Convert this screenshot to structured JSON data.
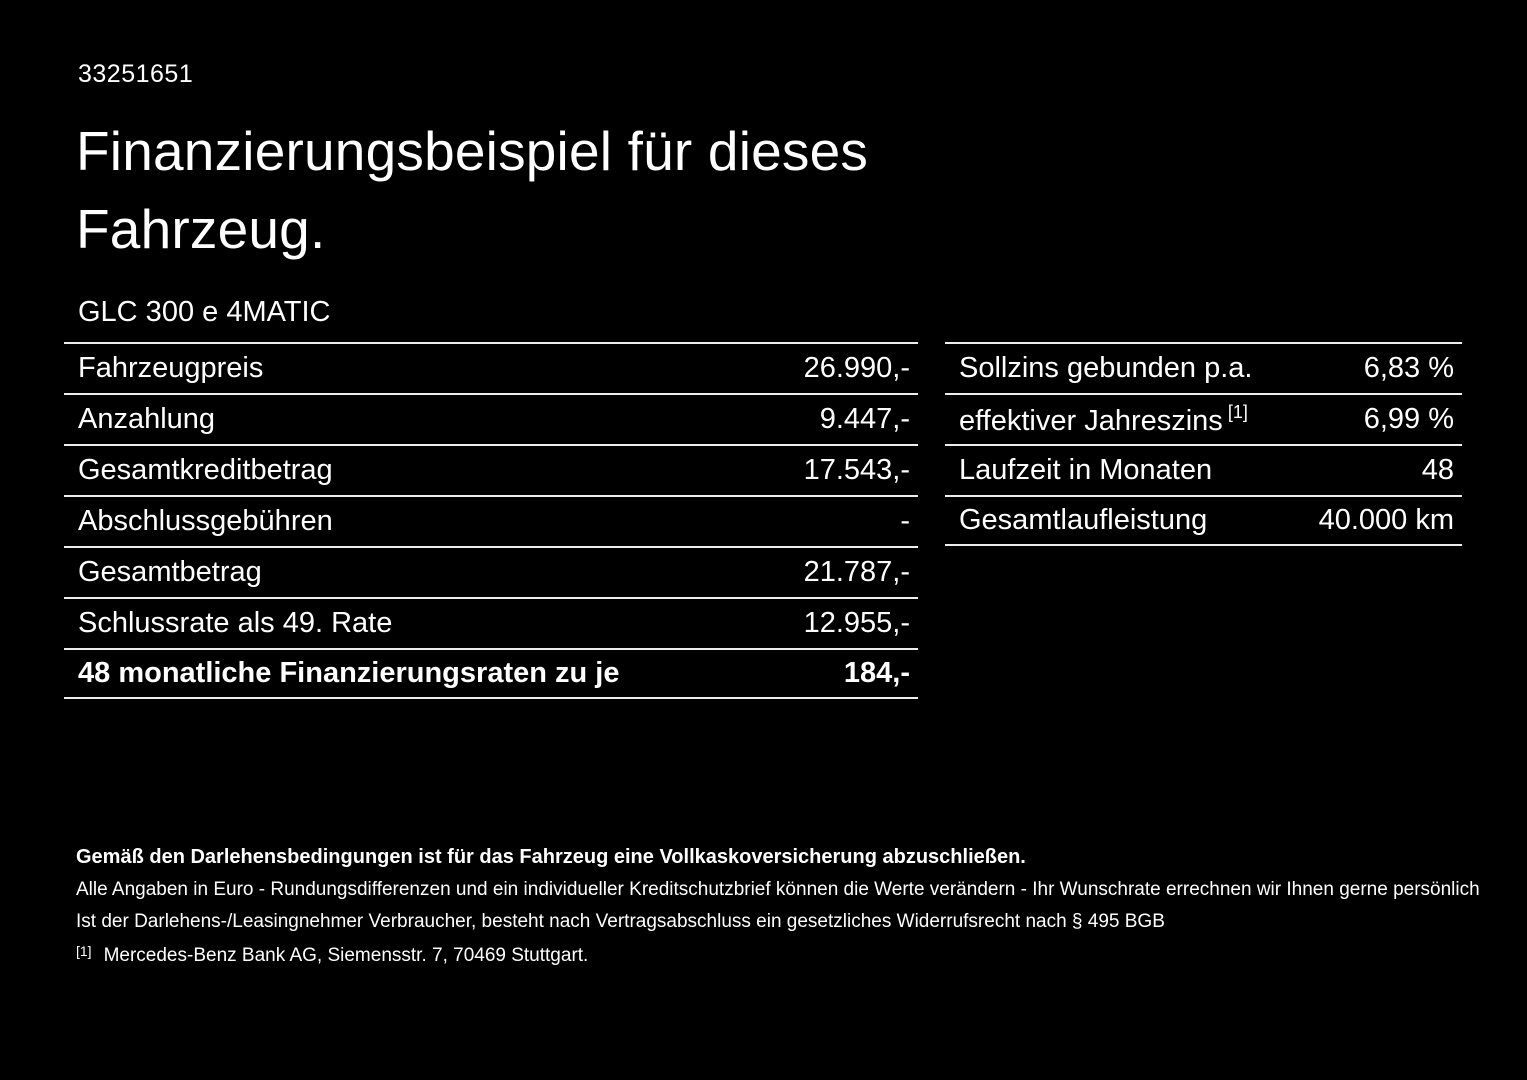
{
  "page": {
    "id_number": "33251651",
    "title": "Finanzierungsbeispiel für dieses Fahrzeug.",
    "model": "GLC 300 e 4MATIC"
  },
  "left_table": {
    "rows": [
      {
        "label": "Fahrzeugpreis",
        "value": "26.990,-"
      },
      {
        "label": "Anzahlung",
        "value": "9.447,-"
      },
      {
        "label": "Gesamtkreditbetrag",
        "value": "17.543,-"
      },
      {
        "label": "Abschlussgebühren",
        "value": "-"
      },
      {
        "label": "Gesamtbetrag",
        "value": "21.787,-"
      },
      {
        "label": "Schlussrate als 49. Rate",
        "value": "12.955,-"
      },
      {
        "label": "48 monatliche Finanzierungsraten zu je",
        "value": "184,-"
      }
    ]
  },
  "right_table": {
    "rows": [
      {
        "label": "Sollzins gebunden p.a.",
        "value": "6,83 %"
      },
      {
        "label": "effektiver Jahreszins",
        "superscript": "[1]",
        "value": "6,99 %"
      },
      {
        "label": "Laufzeit in Monaten",
        "value": "48"
      },
      {
        "label": "Gesamtlaufleistung",
        "value": "40.000 km"
      }
    ]
  },
  "footer": {
    "bold_note": "Gemäß den Darlehensbedingungen ist für das Fahrzeug eine Vollkaskoversicherung abzuschließen.",
    "note_1": "Alle Angaben in Euro - Rundungsdifferenzen und ein individueller Kreditschutzbrief können die Werte verändern - Ihr Wunschrate errechnen wir Ihnen gerne persönlich",
    "note_2": "Ist der Darlehens-/Leasingnehmer Verbraucher, besteht nach Vertragsabschluss ein gesetzliches Widerrufsrecht nach § 495 BGB",
    "footnote_marker": "[1]",
    "footnote_text": "Mercedes-Benz Bank AG, Siemensstr. 7, 70469 Stuttgart."
  },
  "colors": {
    "background": "#000000",
    "text": "#ffffff",
    "divider": "#ededed"
  }
}
